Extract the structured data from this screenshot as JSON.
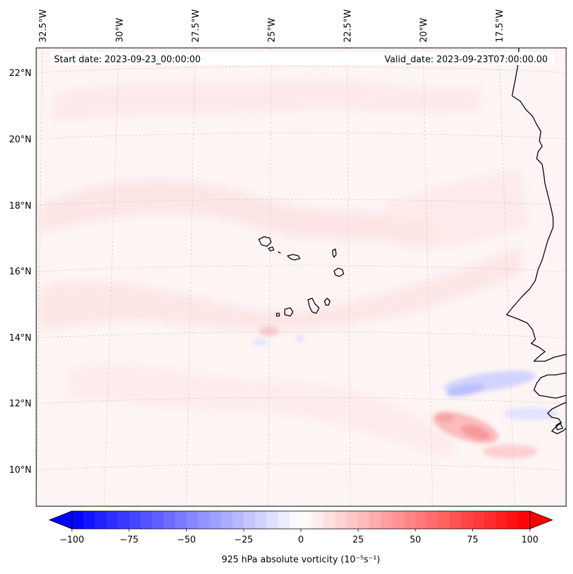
{
  "header": {
    "start_date": "Start date: 2023-09-23_00:00:00",
    "valid_date": "Valid_date: 2023-09-23T07:00:00.00"
  },
  "map": {
    "lon_labels": [
      "32.5°W",
      "30°W",
      "27.5°W",
      "25°W",
      "22.5°W",
      "20°W",
      "17.5°W"
    ],
    "lat_labels": [
      "22°N",
      "20°N",
      "18°N",
      "16°N",
      "14°N",
      "12°N",
      "10°N"
    ],
    "field": "925 hPa absolute vorticity",
    "feature_colors": {
      "positive": "#ff0000",
      "negative": "#0000ff",
      "coastline": "#000000"
    }
  },
  "colorbar": {
    "label": "925 hPa absolute vorticity (10⁻⁵s⁻¹)",
    "ticks": [
      "−100",
      "−75",
      "−50",
      "−25",
      "0",
      "25",
      "50",
      "75",
      "100"
    ],
    "min": -100,
    "max": 100,
    "low_color": "#0000ff",
    "mid_color": "#ffffff",
    "high_color": "#ff0000"
  }
}
